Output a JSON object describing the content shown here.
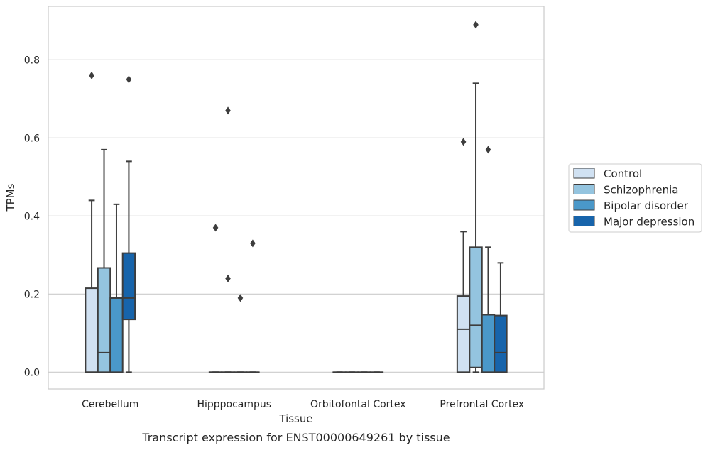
{
  "chart_data": {
    "type": "boxplot",
    "caption": "Transcript expression for ENST00000649261 by tissue",
    "xlabel": "Tissue",
    "ylabel": "TPMs",
    "ylim": [
      -0.043,
      0.937
    ],
    "yticks": [
      0.0,
      0.2,
      0.4,
      0.6,
      0.8
    ],
    "ytick_labels": [
      "0.0",
      "0.2",
      "0.4",
      "0.6",
      "0.8"
    ],
    "grid": "horizontal",
    "legend_position": "right",
    "categories": [
      "Cerebellum",
      "Hipppocampus",
      "Orbitofontal Cortex",
      "Prefrontal Cortex"
    ],
    "series": [
      {
        "name": "Control",
        "color": "#d0e1f2",
        "boxes": [
          {
            "q1": 0.0,
            "median": 0.0,
            "q3": 0.215,
            "whislo": 0.0,
            "whishi": 0.44,
            "fliers": [
              0.76
            ]
          },
          {
            "q1": 0.0,
            "median": 0.0,
            "q3": 0.0,
            "whislo": 0.0,
            "whishi": 0.0,
            "fliers": [
              0.37
            ]
          },
          {
            "q1": 0.0,
            "median": 0.0,
            "q3": 0.0,
            "whislo": 0.0,
            "whishi": 0.0,
            "fliers": []
          },
          {
            "q1": 0.0,
            "median": 0.11,
            "q3": 0.195,
            "whislo": 0.0,
            "whishi": 0.36,
            "fliers": [
              0.59
            ]
          }
        ]
      },
      {
        "name": "Schizophrenia",
        "color": "#94c4df",
        "boxes": [
          {
            "q1": 0.0,
            "median": 0.05,
            "q3": 0.267,
            "whislo": 0.0,
            "whishi": 0.57,
            "fliers": []
          },
          {
            "q1": 0.0,
            "median": 0.0,
            "q3": 0.0,
            "whislo": 0.0,
            "whishi": 0.0,
            "fliers": [
              0.67,
              0.24
            ]
          },
          {
            "q1": 0.0,
            "median": 0.0,
            "q3": 0.0,
            "whislo": 0.0,
            "whishi": 0.0,
            "fliers": []
          },
          {
            "q1": 0.012,
            "median": 0.12,
            "q3": 0.32,
            "whislo": 0.0,
            "whishi": 0.74,
            "fliers": [
              0.89
            ]
          }
        ]
      },
      {
        "name": "Bipolar disorder",
        "color": "#4a98c9",
        "boxes": [
          {
            "q1": 0.0,
            "median": 0.19,
            "q3": 0.19,
            "whislo": 0.0,
            "whishi": 0.43,
            "fliers": []
          },
          {
            "q1": 0.0,
            "median": 0.0,
            "q3": 0.0,
            "whislo": 0.0,
            "whishi": 0.0,
            "fliers": [
              0.19
            ]
          },
          {
            "q1": 0.0,
            "median": 0.0,
            "q3": 0.0,
            "whislo": 0.0,
            "whishi": 0.0,
            "fliers": []
          },
          {
            "q1": 0.0,
            "median": 0.147,
            "q3": 0.147,
            "whislo": 0.0,
            "whishi": 0.32,
            "fliers": [
              0.57
            ]
          }
        ]
      },
      {
        "name": "Major depression",
        "color": "#1764ab",
        "boxes": [
          {
            "q1": 0.135,
            "median": 0.19,
            "q3": 0.305,
            "whislo": 0.0,
            "whishi": 0.54,
            "fliers": [
              0.75
            ]
          },
          {
            "q1": 0.0,
            "median": 0.0,
            "q3": 0.0,
            "whislo": 0.0,
            "whishi": 0.0,
            "fliers": [
              0.33
            ]
          },
          {
            "q1": 0.0,
            "median": 0.0,
            "q3": 0.0,
            "whislo": 0.0,
            "whishi": 0.0,
            "fliers": []
          },
          {
            "q1": 0.0,
            "median": 0.05,
            "q3": 0.145,
            "whislo": 0.0,
            "whishi": 0.28,
            "fliers": []
          }
        ]
      }
    ]
  }
}
